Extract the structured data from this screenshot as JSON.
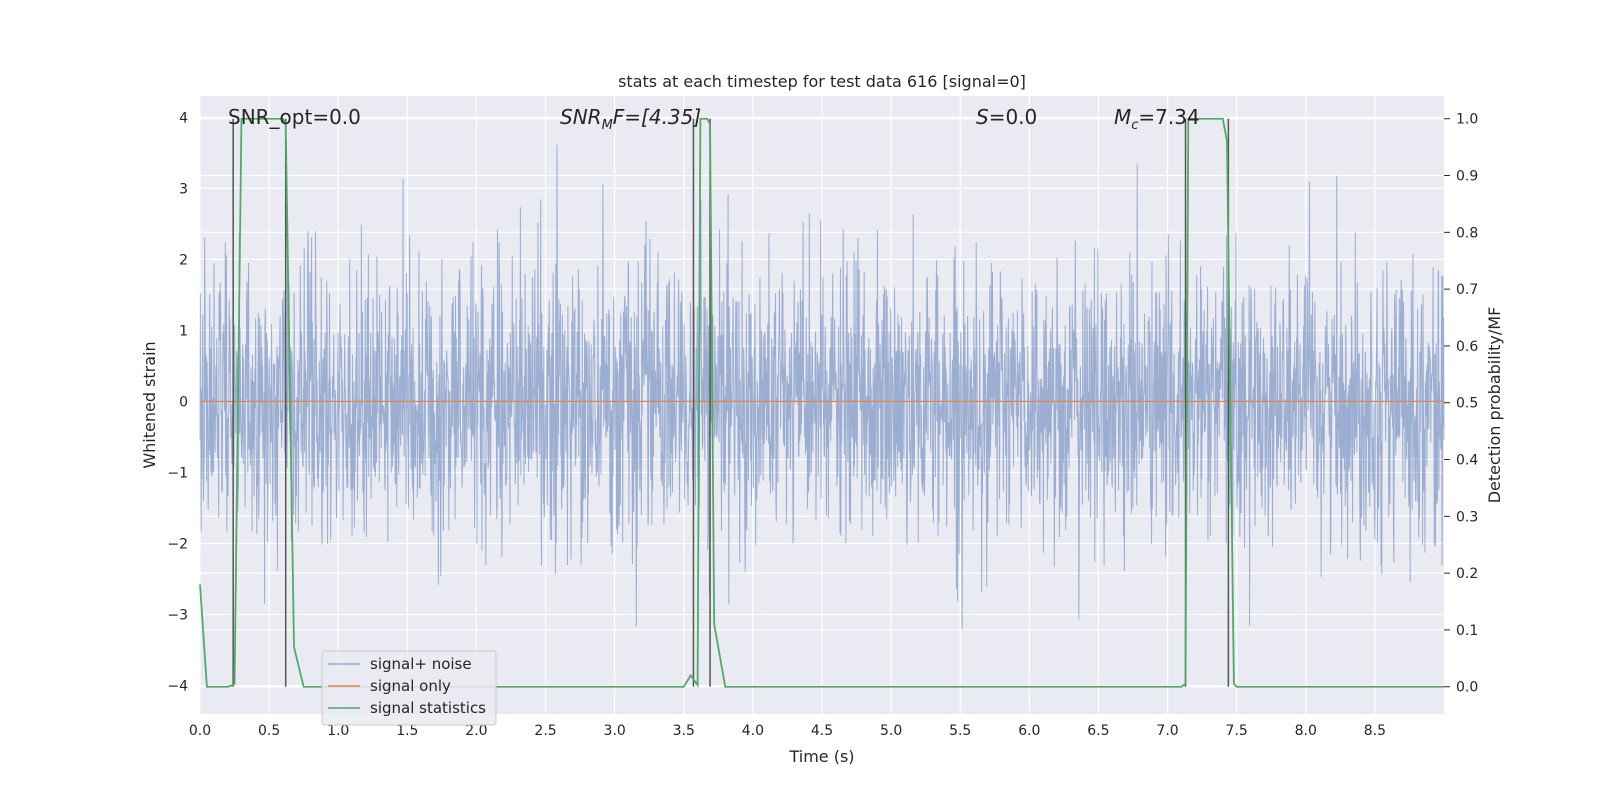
{
  "chart_data": {
    "type": "line",
    "title": "stats at each timestep for test data 616 [signal=0]",
    "xlabel": "Time (s)",
    "ylabel_left": "Whitened strain",
    "ylabel_right": "Detection probability/MF",
    "xlim": [
      0.0,
      9.0
    ],
    "ylim_left": [
      -4.4,
      4.3
    ],
    "ylim_right": [
      -0.048,
      1.04
    ],
    "x_ticks": [
      0.0,
      0.5,
      1.0,
      1.5,
      2.0,
      2.5,
      3.0,
      3.5,
      4.0,
      4.5,
      5.0,
      5.5,
      6.0,
      6.5,
      7.0,
      7.5,
      8.0,
      8.5
    ],
    "x_tick_labels": [
      "0.0",
      "0.5",
      "1.0",
      "1.5",
      "2.0",
      "2.5",
      "3.0",
      "3.5",
      "4.0",
      "4.5",
      "5.0",
      "5.5",
      "6.0",
      "6.5",
      "7.0",
      "7.5",
      "8.0",
      "8.5"
    ],
    "y_left_ticks": [
      -4,
      -3,
      -2,
      -1,
      0,
      1,
      2,
      3,
      4
    ],
    "y_left_tick_labels": [
      "−4",
      "−3",
      "−2",
      "−1",
      "0",
      "1",
      "2",
      "3",
      "4"
    ],
    "y_right_ticks": [
      0.0,
      0.1,
      0.2,
      0.3,
      0.4,
      0.5,
      0.6,
      0.7,
      0.8,
      0.9,
      1.0
    ],
    "y_right_tick_labels": [
      "0.0",
      "0.1",
      "0.2",
      "0.3",
      "0.4",
      "0.5",
      "0.6",
      "0.7",
      "0.8",
      "0.9",
      "1.0"
    ],
    "annotations": {
      "snr_opt": "SNR_opt=0.0",
      "snr_mf_main": "SNR",
      "snr_mf_sub": "M",
      "snr_mf_rest": "F=[4.35]",
      "s_main": "S",
      "s_rest": "=0.0",
      "mc_main": "M",
      "mc_sub": "c",
      "mc_rest": "=7.34"
    },
    "legend": {
      "position": "lower-left",
      "entries": [
        "signal+ noise",
        "signal only",
        "signal statistics"
      ]
    },
    "series": [
      {
        "name": "signal+ noise",
        "color": "#4c72b0",
        "kind": "noise",
        "mean": 0.0,
        "std": 1.0,
        "duration": 9.0,
        "note": "dense whitened-strain trace, peaks near 3.9 and -3.6"
      },
      {
        "name": "signal only",
        "color": "#dd8452",
        "x": [
          0.0,
          9.0
        ],
        "y": [
          0.0,
          0.0
        ]
      },
      {
        "name": "signal statistics",
        "color": "#55a868",
        "x": [
          0.0,
          0.05,
          0.2,
          0.24,
          0.25,
          0.3,
          0.6,
          0.62,
          0.68,
          0.75,
          3.5,
          3.55,
          3.6,
          3.62,
          3.67,
          3.69,
          3.72,
          3.8,
          6.3,
          6.4,
          7.1,
          7.13,
          7.15,
          7.18,
          7.4,
          7.43,
          7.48,
          7.5,
          8.6,
          8.8,
          9.0
        ],
        "y": [
          0.18,
          0.0,
          0.0,
          0.003,
          0.005,
          1.0,
          1.0,
          0.99,
          0.07,
          0.0,
          0.0,
          0.02,
          0.003,
          1.0,
          1.0,
          0.99,
          0.11,
          0.0,
          0.0,
          0.0,
          0.0,
          0.005,
          1.0,
          1.0,
          1.0,
          0.96,
          0.005,
          0.0,
          0.0,
          0.0,
          0.0
        ]
      }
    ],
    "detection_markers": {
      "color": "#555555",
      "x": [
        0.24,
        0.62,
        3.57,
        3.69,
        7.13,
        7.44
      ]
    },
    "right_axis_grid": [
      0.0,
      0.1,
      0.2,
      0.3,
      0.4,
      0.5,
      0.6,
      0.7,
      0.8,
      0.9,
      1.0
    ]
  }
}
